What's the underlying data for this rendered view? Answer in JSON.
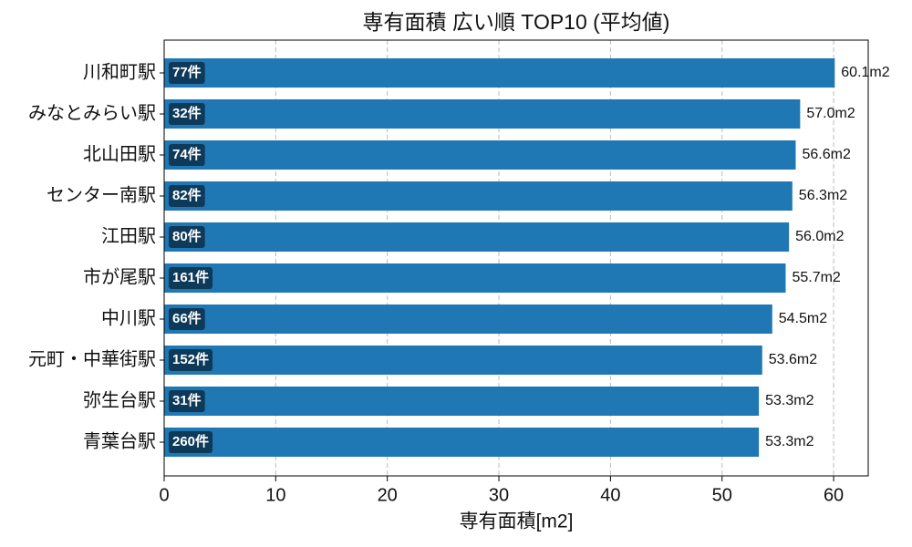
{
  "chart_data": {
    "type": "barh",
    "title": "専有面積 広い順 TOP10 (平均値)",
    "xlabel": "専有面積[m2]",
    "categories": [
      "川和町駅",
      "みなとみらい駅",
      "北山田駅",
      "センター南駅",
      "江田駅",
      "市が尾駅",
      "中川駅",
      "元町・中華街駅",
      "弥生台駅",
      "青葉台駅"
    ],
    "values": [
      60.1,
      57.0,
      56.6,
      56.3,
      56.0,
      55.7,
      54.5,
      53.6,
      53.3,
      53.3
    ],
    "value_labels": [
      "60.1m2",
      "57.0m2",
      "56.6m2",
      "56.3m2",
      "56.0m2",
      "55.7m2",
      "54.5m2",
      "53.6m2",
      "53.3m2",
      "53.3m2"
    ],
    "count_labels": [
      "77件",
      "32件",
      "74件",
      "82件",
      "80件",
      "161件",
      "66件",
      "152件",
      "31件",
      "260件"
    ],
    "color": "#1f77b4",
    "badge_color": "#0e3a5a",
    "xlim": [
      0,
      63.1
    ],
    "xticks": [
      0,
      10,
      20,
      30,
      40,
      50,
      60
    ],
    "grid": true
  }
}
